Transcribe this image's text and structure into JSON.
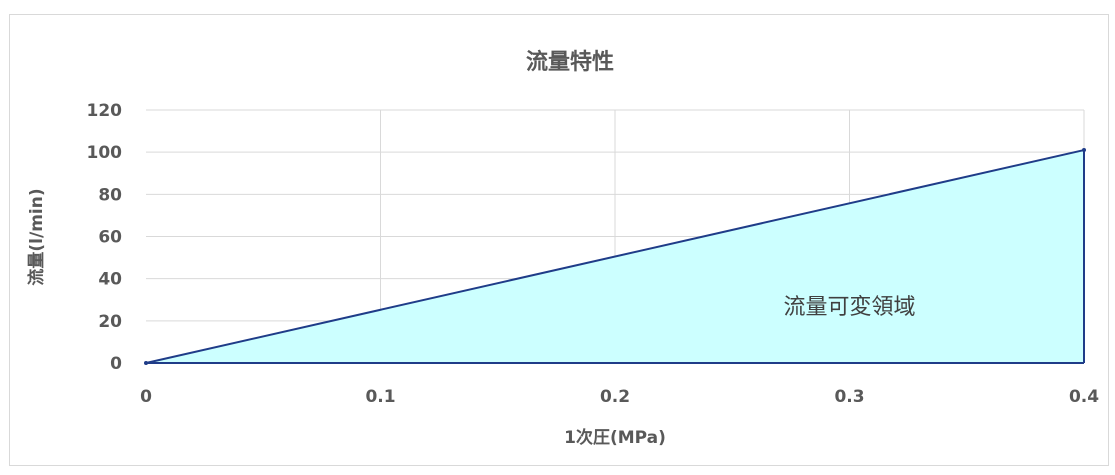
{
  "chart_data": {
    "type": "area",
    "title": "流量特性",
    "xlabel": "1次圧(MPa)",
    "ylabel": "流量(l/min)",
    "x": [
      0,
      0.4
    ],
    "series": [
      {
        "values": [
          0,
          101
        ]
      }
    ],
    "xticks": [
      "0",
      "0.1",
      "0.2",
      "0.3",
      "0.4"
    ],
    "xtick_values": [
      0,
      0.1,
      0.2,
      0.3,
      0.4
    ],
    "yticks": [
      "0",
      "20",
      "40",
      "60",
      "80",
      "100",
      "120"
    ],
    "ytick_values": [
      0,
      20,
      40,
      60,
      80,
      100,
      120
    ],
    "xlim": [
      0,
      0.4
    ],
    "ylim": [
      0,
      120
    ],
    "grid": true,
    "annotation": {
      "text": "流量可変領域",
      "x": 0.3,
      "y": 27
    },
    "colors": {
      "fill": "#ccffff",
      "line": "#1f3c88",
      "grid": "#d9d9d9",
      "text": "#595959"
    }
  }
}
